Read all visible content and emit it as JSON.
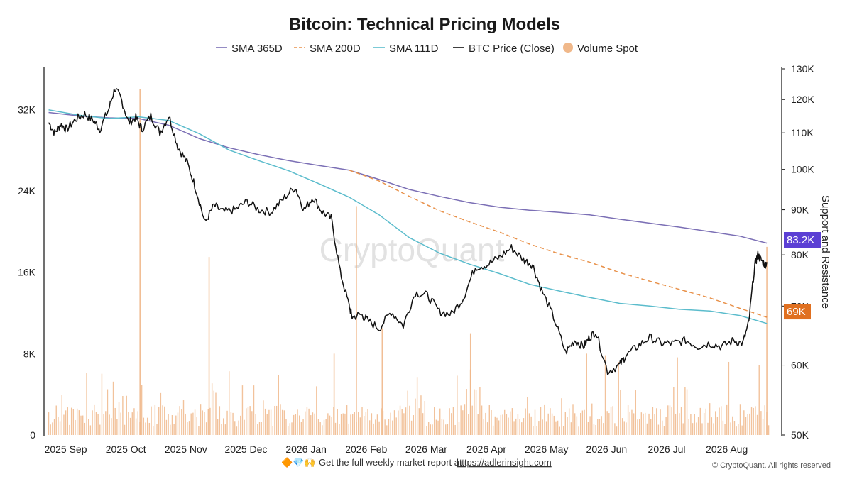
{
  "chart_data": {
    "type": "line",
    "title": "Bitcoin: Technical Pricing Models",
    "legend_position": "top",
    "legend": [
      {
        "name": "SMA 365D",
        "color": "#7b6fb5",
        "style": "solid"
      },
      {
        "name": "SMA 200D",
        "color": "#e8914a",
        "style": "dashed"
      },
      {
        "name": "SMA 111D",
        "color": "#5bbccc",
        "style": "solid"
      },
      {
        "name": "BTC Price (Close)",
        "color": "#111111",
        "style": "solid"
      },
      {
        "name": "Volume Spot",
        "color": "#f0b88a",
        "style": "dot"
      }
    ],
    "x_axis": {
      "ticks": [
        "2025 Sep",
        "2025 Oct",
        "2025 Nov",
        "2025 Dec",
        "2026 Jan",
        "2026 Feb",
        "2026 Mar",
        "2026 Apr",
        "2026 May",
        "2026 Jun",
        "2026 Jul",
        "2026 Aug"
      ],
      "tick_months": [
        0,
        1,
        2,
        3,
        4,
        5,
        6,
        7,
        8,
        9,
        10,
        11
      ],
      "range": [
        -0.03,
        12.15
      ]
    },
    "left_axis": {
      "ticks": [
        "0",
        "8K",
        "16K",
        "24K",
        "32K"
      ],
      "range": [
        0,
        36000
      ],
      "quantity": "Volume Spot"
    },
    "right_axis": {
      "label": "Support and Resistance",
      "ticks": [
        "50K",
        "60K",
        "70K",
        "80K",
        "90K",
        "100K",
        "110K",
        "120K",
        "130K"
      ],
      "range": [
        50000,
        130000
      ],
      "scale": "log"
    },
    "series": [
      {
        "name": "SMA 365D",
        "color": "#7b6fb5",
        "x": [
          0.0,
          0.5,
          1.0,
          1.5,
          2.0,
          2.5,
          3.0,
          3.5,
          4.0,
          4.5,
          5.0,
          5.5,
          6.0,
          6.5,
          7.0,
          7.5,
          8.0,
          8.5,
          9.0,
          9.5,
          10.0,
          10.5,
          11.0,
          11.5,
          11.95
        ],
        "y": [
          116000,
          115000,
          114400,
          114200,
          112200,
          108400,
          105800,
          103900,
          102300,
          101000,
          99800,
          97400,
          94900,
          93200,
          91700,
          90600,
          89900,
          89400,
          88800,
          87800,
          86900,
          86000,
          85000,
          84000,
          82500
        ]
      },
      {
        "name": "SMA 200D",
        "color": "#e8914a",
        "x": [
          5.0,
          5.5,
          6.0,
          6.5,
          7.0,
          7.5,
          8.0,
          8.5,
          9.0,
          9.5,
          10.0,
          10.5,
          11.0,
          11.5,
          11.95
        ],
        "y": [
          99800,
          97000,
          93200,
          89800,
          87200,
          84900,
          82300,
          80200,
          78500,
          76400,
          74700,
          73100,
          71500,
          69600,
          68000
        ]
      },
      {
        "name": "SMA 111D",
        "color": "#5bbccc",
        "x": [
          0.0,
          0.5,
          1.0,
          1.5,
          2.0,
          2.5,
          3.0,
          3.5,
          4.0,
          4.5,
          5.0,
          5.5,
          6.0,
          6.5,
          7.0,
          7.5,
          8.0,
          8.5,
          9.0,
          9.5,
          10.0,
          10.5,
          11.0,
          11.5,
          11.95
        ],
        "y": [
          116800,
          115200,
          114200,
          114700,
          113600,
          109800,
          105200,
          102300,
          99600,
          96300,
          93000,
          88800,
          83700,
          80400,
          78100,
          76200,
          74100,
          72800,
          71600,
          70500,
          70000,
          69400,
          69100,
          68300,
          66900
        ]
      },
      {
        "name": "BTC Price (Close)",
        "color": "#111111",
        "x": [
          0.0,
          0.1,
          0.2,
          0.3,
          0.45,
          0.6,
          0.75,
          0.85,
          1.0,
          1.1,
          1.2,
          1.33,
          1.45,
          1.55,
          1.7,
          1.85,
          2.0,
          2.15,
          2.3,
          2.45,
          2.6,
          2.75,
          2.9,
          3.1,
          3.3,
          3.5,
          3.7,
          3.9,
          4.1,
          4.25,
          4.4,
          4.55,
          4.7,
          4.85,
          5.0,
          5.05,
          5.2,
          5.3,
          5.5,
          5.7,
          5.9,
          6.1,
          6.3,
          6.5,
          6.7,
          6.9,
          7.1,
          7.3,
          7.5,
          7.7,
          7.9,
          8.05,
          8.2,
          8.4,
          8.6,
          8.75,
          8.9,
          9.0,
          9.1,
          9.3,
          9.5,
          9.6,
          9.8,
          10.0,
          10.2,
          10.4,
          10.6,
          10.8,
          11.0,
          11.2,
          11.4,
          11.55,
          11.65,
          11.75,
          11.8,
          11.85,
          11.92,
          11.95
        ],
        "y": [
          113000,
          110000,
          112500,
          111000,
          114000,
          115500,
          113500,
          111000,
          117000,
          123500,
          120500,
          113000,
          114500,
          111000,
          115000,
          110000,
          115000,
          106000,
          102000,
          95000,
          87000,
          91000,
          89500,
          90000,
          92000,
          90000,
          89500,
          92500,
          95500,
          90000,
          93000,
          89500,
          88000,
          76500,
          70000,
          68000,
          68500,
          67500,
          66000,
          69000,
          66500,
          72500,
          72000,
          69000,
          68500,
          71500,
          77500,
          78000,
          79500,
          81500,
          79000,
          78000,
          73000,
          68000,
          62000,
          64000,
          63000,
          64500,
          65500,
          59000,
          60000,
          61500,
          63000,
          64500,
          63500,
          63500,
          64000,
          63000,
          63500,
          63000,
          64000,
          63500,
          67000,
          78000,
          80000,
          79000,
          78000,
          78500
        ]
      }
    ],
    "volume_spot": {
      "name": "Volume Spot",
      "color": "#f0b88a",
      "spikes": [
        {
          "x": 1.52,
          "value": 34000
        },
        {
          "x": 2.67,
          "value": 17500
        },
        {
          "x": 5.12,
          "value": 22500
        },
        {
          "x": 4.75,
          "value": 8000
        },
        {
          "x": 5.55,
          "value": 10500
        },
        {
          "x": 7.02,
          "value": 10000
        },
        {
          "x": 8.95,
          "value": 8000
        },
        {
          "x": 11.95,
          "value": 18500
        }
      ]
    },
    "annotations": {
      "badges": [
        {
          "label": "83.2K",
          "value": 83200,
          "color": "#5b3fd4"
        },
        {
          "label": "69K",
          "value": 69000,
          "color": "#e07020"
        }
      ]
    }
  },
  "watermark": "CryptoQuant",
  "footer": {
    "emoji": "🔶💎🙌",
    "text": "Get the full weekly market report at",
    "link": "https://adlerinsight.com",
    "copyright": "© CryptoQuant. All rights reserved"
  }
}
